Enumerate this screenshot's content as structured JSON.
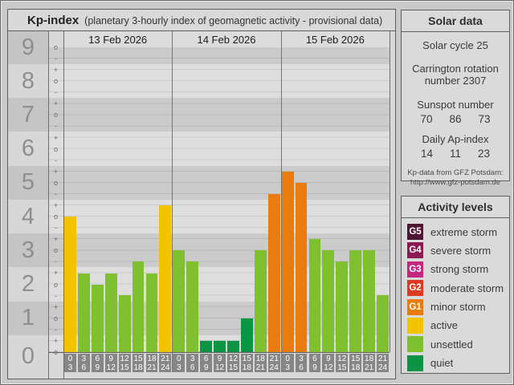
{
  "header": {
    "title": "Kp-index",
    "subtitle": "(planetary 3-hourly index of geomagnetic activity - provisional data)"
  },
  "chart_data": {
    "type": "bar",
    "title": "Kp-index (planetary 3-hourly index of geomagnetic activity - provisional data)",
    "ylabel": "Kp",
    "ylim": [
      0,
      9
    ],
    "grid": true,
    "hour_intervals": [
      [
        "0",
        "3"
      ],
      [
        "3",
        "6"
      ],
      [
        "6",
        "9"
      ],
      [
        "9",
        "12"
      ],
      [
        "12",
        "15"
      ],
      [
        "15",
        "18"
      ],
      [
        "18",
        "21"
      ],
      [
        "21",
        "24"
      ]
    ],
    "days": [
      {
        "date": "13 Feb 2026",
        "values": [
          4.0,
          2.33,
          2.0,
          2.33,
          1.67,
          2.67,
          2.33,
          4.33
        ],
        "kp_notation": [
          "4o",
          "2+",
          "2o",
          "2+",
          "2-",
          "3-",
          "2+",
          "4+"
        ],
        "levels": [
          "active",
          "unsettled",
          "unsettled",
          "unsettled",
          "unsettled",
          "unsettled",
          "unsettled",
          "active"
        ]
      },
      {
        "date": "14 Feb 2026",
        "values": [
          3.0,
          2.67,
          0.33,
          0.33,
          0.33,
          1.0,
          3.0,
          4.67
        ],
        "kp_notation": [
          "3o",
          "3-",
          "0+",
          "0+",
          "0+",
          "1o",
          "3o",
          "5-"
        ],
        "levels": [
          "unsettled",
          "unsettled",
          "quiet",
          "quiet",
          "quiet",
          "quiet",
          "unsettled",
          "minor_storm"
        ]
      },
      {
        "date": "15 Feb 2026",
        "values": [
          5.33,
          5.0,
          3.33,
          3.0,
          2.67,
          3.0,
          3.0,
          1.67
        ],
        "kp_notation": [
          "5+",
          "5o",
          "3+",
          "3o",
          "3-",
          "3o",
          "3o",
          "2-"
        ],
        "levels": [
          "minor_storm",
          "minor_storm",
          "unsettled",
          "unsettled",
          "unsettled",
          "unsettled",
          "unsettled",
          "unsettled"
        ]
      }
    ],
    "y_axis": {
      "numbers": [
        "9",
        "8",
        "7",
        "6",
        "5",
        "4",
        "3",
        "2",
        "1",
        "0"
      ],
      "sub_ticks_top_to_bottom": [
        "o",
        "-",
        "+",
        "o",
        "-",
        "+",
        "o",
        "-",
        "+",
        "o",
        "-",
        "+",
        "o",
        "-",
        "+",
        "o",
        "-",
        "+",
        "o",
        "-",
        "+",
        "o",
        "-",
        "+",
        "o",
        "-",
        "+",
        "o"
      ]
    }
  },
  "level_colors": {
    "extreme_storm": "#4e1433",
    "severe_storm": "#8c1a52",
    "strong_storm": "#c3277f",
    "moderate_storm": "#dc3b21",
    "minor_storm": "#e87d0e",
    "active": "#f2c300",
    "unsettled": "#7fc02f",
    "quiet": "#0b9444"
  },
  "solar": {
    "title": "Solar data",
    "cycle": "Solar cycle 25",
    "carrington_line1": "Carrington rotation",
    "carrington_line2": "number 2307",
    "sunspot_label": "Sunspot number",
    "sunspot_values": [
      "70",
      "86",
      "73"
    ],
    "ap_label": "Daily Ap-index",
    "ap_values": [
      "14",
      "11",
      "23"
    ],
    "source_line1": "Kp-data from GFZ Potsdam:",
    "source_line2": "http://www.gfz-potsdam.de"
  },
  "legend": {
    "title": "Activity levels",
    "rows": [
      {
        "badge": "G5",
        "label": "extreme storm",
        "color": "#4e1433"
      },
      {
        "badge": "G4",
        "label": "severe storm",
        "color": "#8c1a52"
      },
      {
        "badge": "G3",
        "label": "strong storm",
        "color": "#c3277f"
      },
      {
        "badge": "G2",
        "label": "moderate storm",
        "color": "#dc3b21"
      },
      {
        "badge": "G1",
        "label": "minor storm",
        "color": "#e87d0e"
      },
      {
        "badge": "",
        "label": "active",
        "color": "#f2c300"
      },
      {
        "badge": "",
        "label": "unsettled",
        "color": "#7fc02f"
      },
      {
        "badge": "",
        "label": "quiet",
        "color": "#0b9444"
      }
    ]
  }
}
